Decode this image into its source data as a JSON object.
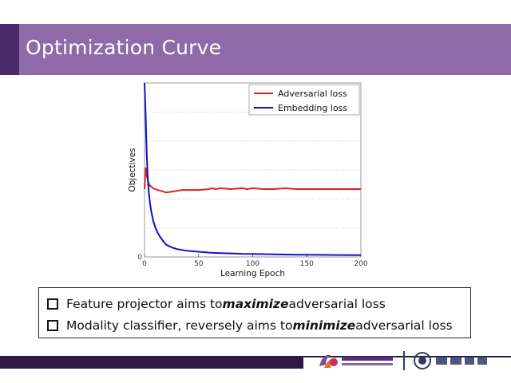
{
  "slide": {
    "title": "Optimization Curve",
    "bullets": [
      {
        "pre": "Feature projector aims to ",
        "em": "maximize",
        "post": " adversarial loss"
      },
      {
        "pre": "Modality classifier, reversely aims to ",
        "em": "minimize",
        "post": " adversarial loss"
      }
    ]
  },
  "colors": {
    "title_bar": "#8e6aa8",
    "title_accent": "#4b2a6b",
    "footer": "#2e1a47",
    "adversarial": "#e02020",
    "embedding": "#1010cc"
  },
  "icons": [
    "checkbox-icon",
    "center-logo-icon",
    "university-logo-icon"
  ],
  "chart_data": {
    "type": "line",
    "title": "",
    "xlabel": "Learning Epoch",
    "ylabel": "Objectives",
    "xlim": [
      0,
      200
    ],
    "ylim": [
      0,
      1
    ],
    "x_ticks": [
      0,
      50,
      100,
      150,
      200
    ],
    "x_tick_labels": [
      "0",
      "50",
      "100",
      "150",
      "200"
    ],
    "y_tick_labels": [
      "0"
    ],
    "grid": "horizontal dotted",
    "legend": "top-right",
    "series": [
      {
        "name": "Adversarial loss",
        "color": "#e02020",
        "x": [
          0,
          1,
          2,
          3,
          4,
          5,
          6,
          7,
          8,
          10,
          12,
          15,
          18,
          20,
          25,
          30,
          35,
          40,
          50,
          60,
          62,
          66,
          70,
          80,
          90,
          95,
          100,
          110,
          120,
          130,
          140,
          150,
          160,
          170,
          180,
          190,
          200
        ],
        "y": [
          0.39,
          0.51,
          0.47,
          0.44,
          0.42,
          0.41,
          0.405,
          0.4,
          0.395,
          0.39,
          0.385,
          0.38,
          0.375,
          0.37,
          0.375,
          0.38,
          0.385,
          0.385,
          0.385,
          0.39,
          0.395,
          0.39,
          0.395,
          0.39,
          0.395,
          0.39,
          0.395,
          0.39,
          0.39,
          0.395,
          0.39,
          0.39,
          0.39,
          0.39,
          0.39,
          0.39,
          0.39
        ]
      },
      {
        "name": "Embedding loss",
        "color": "#1010cc",
        "x": [
          0,
          1,
          2,
          3,
          4,
          5,
          6,
          8,
          10,
          12,
          15,
          18,
          20,
          25,
          30,
          35,
          40,
          50,
          60,
          70,
          80,
          90,
          100,
          120,
          140,
          160,
          180,
          200
        ],
        "y": [
          1.0,
          0.82,
          0.6,
          0.45,
          0.37,
          0.31,
          0.27,
          0.21,
          0.17,
          0.14,
          0.11,
          0.085,
          0.07,
          0.055,
          0.045,
          0.04,
          0.035,
          0.03,
          0.025,
          0.022,
          0.02,
          0.018,
          0.017,
          0.015,
          0.013,
          0.012,
          0.011,
          0.01
        ]
      }
    ]
  }
}
